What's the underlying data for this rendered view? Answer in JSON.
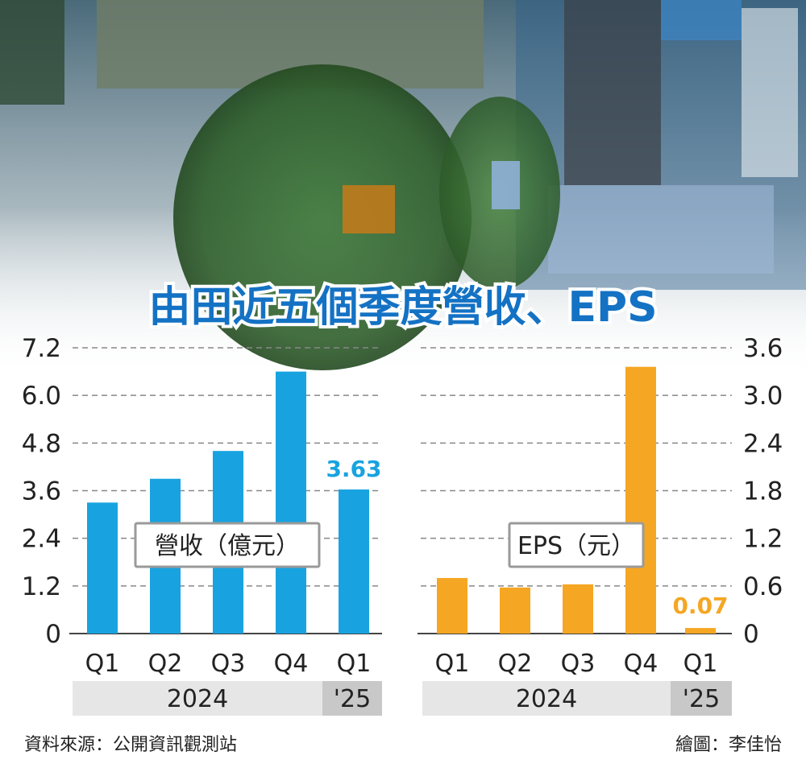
{
  "title": "由田近五個季度營收、EPS",
  "source": "資料來源：公開資訊觀測站",
  "credit": "繪圖：李佳怡",
  "colors": {
    "revenue": "#18a3e0",
    "eps": "#f5a623",
    "title": "#1472c4",
    "grid": "#888888",
    "year_band": "#e6e6e6",
    "year_band_dark": "#c8c8c8"
  },
  "chart_data": [
    {
      "type": "bar",
      "label": "營收（億元）",
      "categories": [
        "Q1",
        "Q2",
        "Q3",
        "Q4",
        "Q1"
      ],
      "year_groups": [
        {
          "label": "2024",
          "span": 4
        },
        {
          "label": "'25",
          "span": 1
        }
      ],
      "values": [
        3.3,
        3.9,
        4.6,
        6.6,
        3.63
      ],
      "highlight_label": "3.63",
      "yticks": [
        "7.2",
        "6.0",
        "4.8",
        "3.6",
        "2.4",
        "1.2",
        "0"
      ],
      "ylim": [
        0,
        7.2
      ],
      "grid": true
    },
    {
      "type": "bar",
      "label": "EPS（元）",
      "categories": [
        "Q1",
        "Q2",
        "Q3",
        "Q4",
        "Q1"
      ],
      "year_groups": [
        {
          "label": "2024",
          "span": 4
        },
        {
          "label": "'25",
          "span": 1
        }
      ],
      "values": [
        0.7,
        0.58,
        0.62,
        3.36,
        0.07
      ],
      "highlight_label": "0.07",
      "yticks": [
        "3.6",
        "3.0",
        "2.4",
        "1.8",
        "1.2",
        "0.6",
        "0"
      ],
      "ylim": [
        0,
        3.6
      ],
      "grid": true
    }
  ]
}
